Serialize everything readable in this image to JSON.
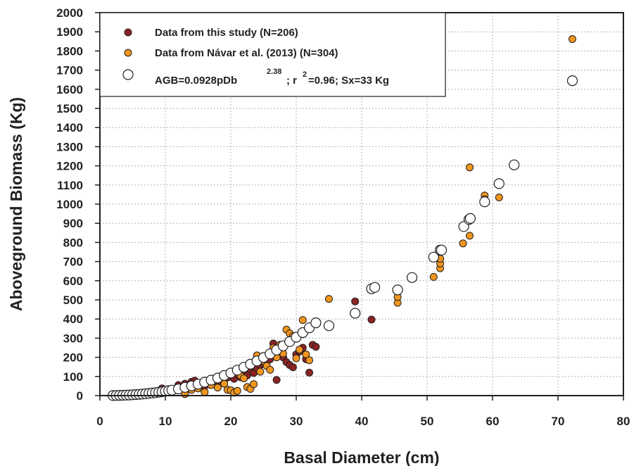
{
  "chart_data": {
    "type": "scatter",
    "xlabel": "Basal Diameter (cm)",
    "ylabel": "Aboveground Biomass (Kg)",
    "xlim": [
      0,
      80
    ],
    "ylim": [
      0,
      2000
    ],
    "xticks": [
      0,
      10,
      20,
      30,
      40,
      50,
      60,
      70,
      80
    ],
    "yticks": [
      0,
      100,
      200,
      300,
      400,
      500,
      600,
      700,
      800,
      900,
      1000,
      1100,
      1200,
      1300,
      1400,
      1500,
      1600,
      1700,
      1800,
      1900,
      2000
    ],
    "grid": "dotted",
    "legend_position": "top-left",
    "legend": {
      "entry1": "Data from this study (N=206)",
      "entry2": "Data from Návar et al. (2013) (N=304)",
      "entry3_main": "AGB=0.0928pDb",
      "entry3_exp": "2.38",
      "entry3_r": "; r",
      "entry3_r_exp": "2",
      "entry3_rest": "=0.96; Sx=33 Kg"
    },
    "series": [
      {
        "name": "Data from this study (N=206)",
        "color": "#8b2323",
        "points": [
          [
            2.5,
            1
          ],
          [
            3,
            2
          ],
          [
            4,
            4
          ],
          [
            5,
            6
          ],
          [
            6,
            8
          ],
          [
            7,
            12
          ],
          [
            8,
            16
          ],
          [
            9,
            22
          ],
          [
            9.5,
            38
          ],
          [
            10,
            20
          ],
          [
            11,
            28
          ],
          [
            12,
            55
          ],
          [
            13,
            62
          ],
          [
            13.5,
            45
          ],
          [
            14,
            72
          ],
          [
            14.5,
            78
          ],
          [
            15,
            52
          ],
          [
            15.5,
            60
          ],
          [
            16,
            48
          ],
          [
            16.5,
            68
          ],
          [
            17,
            85
          ],
          [
            17.5,
            70
          ],
          [
            18,
            62
          ],
          [
            19,
            82
          ],
          [
            19.5,
            95
          ],
          [
            20,
            102
          ],
          [
            20.5,
            88
          ],
          [
            21,
            112
          ],
          [
            21.5,
            96
          ],
          [
            22,
            128
          ],
          [
            22.5,
            105
          ],
          [
            23,
            135
          ],
          [
            23.5,
            118
          ],
          [
            24,
            145
          ],
          [
            24.5,
            160
          ],
          [
            25,
            165
          ],
          [
            25.5,
            178
          ],
          [
            26,
            190
          ],
          [
            26.5,
            272
          ],
          [
            27,
            240
          ],
          [
            27,
            82
          ],
          [
            28,
            200
          ],
          [
            28.5,
            175
          ],
          [
            29,
            160
          ],
          [
            29.5,
            148
          ],
          [
            30,
            215
          ],
          [
            30.5,
            230
          ],
          [
            31,
            250
          ],
          [
            31.5,
            190
          ],
          [
            32,
            120
          ],
          [
            32.5,
            265
          ],
          [
            33,
            255
          ],
          [
            39,
            492
          ],
          [
            41.5,
            397
          ]
        ]
      },
      {
        "name": "Data from Návar et al. (2013) (N=304)",
        "color": "#f0961e",
        "points": [
          [
            3,
            2
          ],
          [
            5,
            5
          ],
          [
            7,
            10
          ],
          [
            9,
            15
          ],
          [
            11,
            22
          ],
          [
            13,
            8
          ],
          [
            14,
            30
          ],
          [
            15,
            38
          ],
          [
            16,
            18
          ],
          [
            17,
            55
          ],
          [
            18,
            42
          ],
          [
            19,
            62
          ],
          [
            19.5,
            30
          ],
          [
            20,
            28
          ],
          [
            20.5,
            15
          ],
          [
            21,
            25
          ],
          [
            21.5,
            105
          ],
          [
            22,
            90
          ],
          [
            22.5,
            45
          ],
          [
            23,
            35
          ],
          [
            23.5,
            60
          ],
          [
            24,
            210
          ],
          [
            24.5,
            125
          ],
          [
            25,
            180
          ],
          [
            25.5,
            155
          ],
          [
            26,
            135
          ],
          [
            26.5,
            250
          ],
          [
            27,
            200
          ],
          [
            27.5,
            265
          ],
          [
            28,
            220
          ],
          [
            28.5,
            345
          ],
          [
            29,
            325
          ],
          [
            29.5,
            310
          ],
          [
            30,
            195
          ],
          [
            30.5,
            240
          ],
          [
            31,
            395
          ],
          [
            31.5,
            215
          ],
          [
            32,
            185
          ],
          [
            35,
            505
          ],
          [
            45.5,
            485
          ],
          [
            45.5,
            515
          ],
          [
            51,
            620
          ],
          [
            52,
            665
          ],
          [
            52,
            690
          ],
          [
            52,
            715
          ],
          [
            55.5,
            795
          ],
          [
            56.5,
            835
          ],
          [
            56.5,
            1192
          ],
          [
            58.8,
            1045
          ],
          [
            58.8,
            1025
          ],
          [
            61,
            1035
          ],
          [
            72.2,
            1862
          ]
        ]
      },
      {
        "name": "AGB=0.0928pDb2.38; r2=0.96; Sx=33 Kg",
        "color": "#ffffff",
        "points": [
          [
            2,
            0.4
          ],
          [
            2.5,
            0.8
          ],
          [
            3,
            1.3
          ],
          [
            3.5,
            1.8
          ],
          [
            4,
            2.5
          ],
          [
            4.5,
            3.4
          ],
          [
            5,
            4.4
          ],
          [
            5.5,
            5.5
          ],
          [
            6,
            6.8
          ],
          [
            6.5,
            8.2
          ],
          [
            7,
            9.8
          ],
          [
            7.5,
            11.6
          ],
          [
            8,
            13.5
          ],
          [
            8.5,
            15.6
          ],
          [
            9,
            17.9
          ],
          [
            9.5,
            20.3
          ],
          [
            10,
            22.9
          ],
          [
            10.5,
            25.8
          ],
          [
            11,
            28.8
          ],
          [
            12,
            35
          ],
          [
            13,
            43
          ],
          [
            14,
            51
          ],
          [
            15,
            60
          ],
          [
            16,
            70
          ],
          [
            17,
            81
          ],
          [
            18,
            92
          ],
          [
            19,
            105
          ],
          [
            20,
            118
          ],
          [
            21,
            133
          ],
          [
            22,
            148
          ],
          [
            23,
            164
          ],
          [
            24,
            181
          ],
          [
            25,
            199
          ],
          [
            26,
            218
          ],
          [
            27,
            238
          ],
          [
            28,
            260
          ],
          [
            29,
            282
          ],
          [
            30,
            305
          ],
          [
            31,
            329
          ],
          [
            32,
            354
          ],
          [
            33,
            380
          ],
          [
            35,
            365
          ],
          [
            39,
            430
          ],
          [
            41.5,
            558
          ],
          [
            42,
            565
          ],
          [
            45.5,
            552
          ],
          [
            47.7,
            617
          ],
          [
            51,
            723
          ],
          [
            52,
            760
          ],
          [
            52.2,
            760
          ],
          [
            55.6,
            883
          ],
          [
            56.4,
            920
          ],
          [
            56.6,
            925
          ],
          [
            58.8,
            1012
          ],
          [
            61,
            1107
          ],
          [
            63.3,
            1205
          ],
          [
            72.2,
            1645
          ]
        ]
      }
    ]
  }
}
